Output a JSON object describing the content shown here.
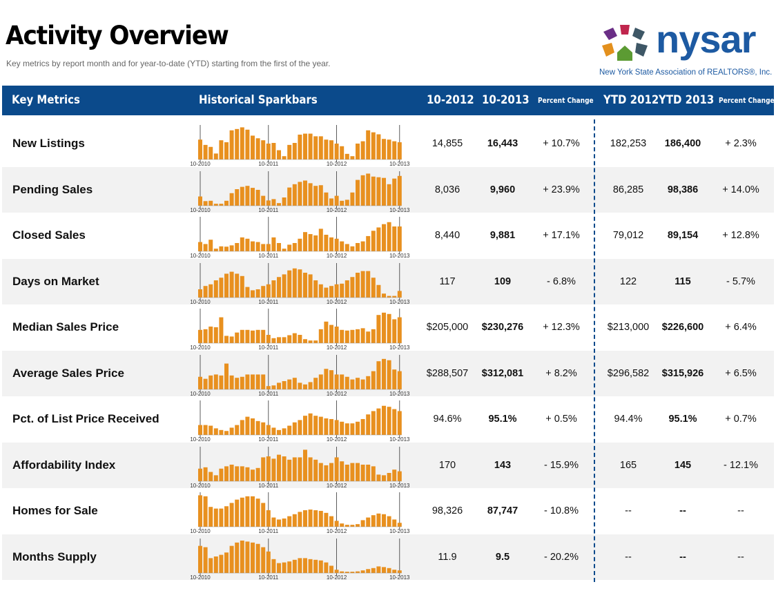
{
  "header": {
    "title": "Activity Overview",
    "subtitle": "Key metrics by report month and for year-to-date (YTD) starting from the first of the year.",
    "logo": {
      "wordmark": "nysar",
      "tagline": "New York State Association of REALTORS®, Inc.",
      "colors": [
        "#6a2e86",
        "#c0264d",
        "#e3901d",
        "#5c9b33",
        "#3e5766"
      ]
    }
  },
  "columns": {
    "metric": "Key Metrics",
    "spark": "Historical Sparkbars",
    "m2012": "10-2012",
    "m2013": "10-2013",
    "pct": "Percent Change",
    "ytd2012": "YTD 2012",
    "ytd2013": "YTD 2013",
    "ytdpct": "Percent Change"
  },
  "spark_axis": [
    "10-2010",
    "10-2011",
    "10-2012",
    "10-2013"
  ],
  "bar_color": "#e8901f",
  "rows": [
    {
      "metric": "New Listings",
      "m2012": "14,855",
      "m2013": "16,443",
      "pct": "+ 10.7%",
      "ytd2012": "182,253",
      "ytd2013": "186,400",
      "ytdpct": "+ 2.3%",
      "bars": [
        0.6,
        0.44,
        0.38,
        0.18,
        0.58,
        0.52,
        0.88,
        0.92,
        0.97,
        0.9,
        0.72,
        0.64,
        0.58,
        0.48,
        0.5,
        0.28,
        0.1,
        0.44,
        0.5,
        0.75,
        0.78,
        0.78,
        0.7,
        0.7,
        0.6,
        0.58,
        0.48,
        0.4,
        0.17,
        0.1,
        0.48,
        0.55,
        0.88,
        0.82,
        0.76,
        0.62,
        0.6,
        0.55,
        0.52
      ]
    },
    {
      "metric": "Pending Sales",
      "m2012": "8,036",
      "m2013": "9,960",
      "pct": "+ 23.9%",
      "ytd2012": "86,285",
      "ytd2013": "98,386",
      "ytdpct": "+ 14.0%",
      "bars": [
        0.28,
        0.14,
        0.15,
        0.06,
        0.06,
        0.15,
        0.38,
        0.5,
        0.57,
        0.6,
        0.54,
        0.48,
        0.3,
        0.16,
        0.2,
        0.08,
        0.25,
        0.55,
        0.65,
        0.72,
        0.76,
        0.68,
        0.6,
        0.62,
        0.4,
        0.22,
        0.3,
        0.15,
        0.18,
        0.4,
        0.78,
        0.92,
        0.97,
        0.88,
        0.86,
        0.84,
        0.65,
        0.82,
        0.9
      ]
    },
    {
      "metric": "Closed Sales",
      "m2012": "8,440",
      "m2013": "9,881",
      "pct": "+ 17.1%",
      "ytd2012": "79,012",
      "ytd2013": "89,154",
      "ytdpct": "+ 12.8%",
      "bars": [
        0.28,
        0.22,
        0.35,
        0.08,
        0.15,
        0.14,
        0.18,
        0.25,
        0.42,
        0.38,
        0.3,
        0.28,
        0.22,
        0.22,
        0.42,
        0.25,
        0.08,
        0.2,
        0.25,
        0.38,
        0.58,
        0.52,
        0.48,
        0.68,
        0.5,
        0.42,
        0.38,
        0.3,
        0.22,
        0.15,
        0.25,
        0.3,
        0.46,
        0.62,
        0.72,
        0.82,
        0.88,
        0.75,
        0.75
      ]
    },
    {
      "metric": "Days on Market",
      "m2012": "117",
      "m2013": "109",
      "pct": "- 6.8%",
      "ytd2012": "122",
      "ytd2013": "115",
      "ytdpct": "- 5.7%",
      "bars": [
        0.25,
        0.35,
        0.4,
        0.52,
        0.6,
        0.72,
        0.78,
        0.72,
        0.65,
        0.32,
        0.22,
        0.25,
        0.35,
        0.4,
        0.52,
        0.62,
        0.7,
        0.82,
        0.88,
        0.85,
        0.75,
        0.7,
        0.52,
        0.4,
        0.3,
        0.35,
        0.4,
        0.42,
        0.52,
        0.62,
        0.75,
        0.8,
        0.8,
        0.6,
        0.38,
        0.12,
        0.05,
        0.05,
        0.2
      ]
    },
    {
      "metric": "Median Sales Price",
      "m2012": "$205,000",
      "m2013": "$230,276",
      "pct": "+ 12.3%",
      "ytd2012": "$213,000",
      "ytd2013": "$226,600",
      "ytdpct": "+ 6.4%",
      "bars": [
        0.4,
        0.42,
        0.5,
        0.48,
        0.78,
        0.22,
        0.2,
        0.32,
        0.4,
        0.4,
        0.38,
        0.4,
        0.4,
        0.25,
        0.15,
        0.18,
        0.18,
        0.24,
        0.3,
        0.25,
        0.12,
        0.08,
        0.08,
        0.42,
        0.65,
        0.55,
        0.5,
        0.4,
        0.38,
        0.4,
        0.42,
        0.45,
        0.35,
        0.42,
        0.85,
        0.92,
        0.88,
        0.72,
        0.78
      ]
    },
    {
      "metric": "Average Sales Price",
      "m2012": "$288,507",
      "m2013": "$312,081",
      "pct": "+ 8.2%",
      "ytd2012": "$296,582",
      "ytd2013": "$315,926",
      "ytdpct": "+ 6.5%",
      "bars": [
        0.38,
        0.32,
        0.42,
        0.45,
        0.42,
        0.78,
        0.42,
        0.35,
        0.38,
        0.45,
        0.45,
        0.45,
        0.45,
        0.1,
        0.12,
        0.2,
        0.25,
        0.3,
        0.35,
        0.2,
        0.15,
        0.22,
        0.35,
        0.45,
        0.62,
        0.58,
        0.45,
        0.45,
        0.38,
        0.3,
        0.35,
        0.3,
        0.4,
        0.55,
        0.85,
        0.92,
        0.88,
        0.6,
        0.55
      ]
    },
    {
      "metric": "Pct. of List Price Received",
      "m2012": "94.6%",
      "m2013": "95.1%",
      "pct": "+ 0.5%",
      "ytd2012": "94.4%",
      "ytd2013": "95.1%",
      "ytdpct": "+ 0.7%",
      "bars": [
        0.3,
        0.3,
        0.28,
        0.2,
        0.15,
        0.12,
        0.22,
        0.3,
        0.45,
        0.55,
        0.5,
        0.42,
        0.38,
        0.3,
        0.22,
        0.15,
        0.2,
        0.28,
        0.38,
        0.45,
        0.58,
        0.65,
        0.58,
        0.55,
        0.5,
        0.48,
        0.45,
        0.4,
        0.35,
        0.35,
        0.4,
        0.48,
        0.62,
        0.72,
        0.8,
        0.88,
        0.85,
        0.78,
        0.72
      ]
    },
    {
      "metric": "Affordability Index",
      "m2012": "170",
      "m2013": "143",
      "pct": "- 15.9%",
      "ytd2012": "165",
      "ytd2013": "145",
      "ytdpct": "- 12.1%",
      "bars": [
        0.38,
        0.42,
        0.28,
        0.18,
        0.38,
        0.45,
        0.5,
        0.45,
        0.45,
        0.42,
        0.35,
        0.4,
        0.72,
        0.75,
        0.68,
        0.8,
        0.75,
        0.65,
        0.72,
        0.72,
        0.95,
        0.72,
        0.65,
        0.55,
        0.48,
        0.55,
        0.72,
        0.6,
        0.5,
        0.55,
        0.55,
        0.5,
        0.5,
        0.45,
        0.2,
        0.18,
        0.25,
        0.35,
        0.3
      ]
    },
    {
      "metric": "Homes for Sale",
      "m2012": "98,326",
      "m2013": "87,747",
      "pct": "- 10.8%",
      "ytd2012": "--",
      "ytd2013": "--",
      "ytdpct": "--",
      "bars": [
        0.95,
        0.92,
        0.6,
        0.55,
        0.55,
        0.62,
        0.72,
        0.82,
        0.88,
        0.92,
        0.92,
        0.85,
        0.72,
        0.5,
        0.28,
        0.22,
        0.25,
        0.32,
        0.38,
        0.45,
        0.5,
        0.52,
        0.5,
        0.48,
        0.42,
        0.32,
        0.18,
        0.1,
        0.06,
        0.06,
        0.08,
        0.2,
        0.28,
        0.35,
        0.4,
        0.38,
        0.32,
        0.22,
        0.12
      ]
    },
    {
      "metric": "Months Supply",
      "m2012": "11.9",
      "m2013": "9.5",
      "pct": "- 20.2%",
      "ytd2012": "--",
      "ytd2013": "--",
      "ytdpct": "--",
      "bars": [
        0.82,
        0.78,
        0.45,
        0.5,
        0.55,
        0.62,
        0.82,
        0.92,
        0.98,
        0.95,
        0.92,
        0.88,
        0.78,
        0.65,
        0.42,
        0.3,
        0.32,
        0.35,
        0.4,
        0.45,
        0.45,
        0.42,
        0.4,
        0.38,
        0.32,
        0.22,
        0.1,
        0.05,
        0.04,
        0.04,
        0.05,
        0.08,
        0.12,
        0.15,
        0.2,
        0.18,
        0.15,
        0.1,
        0.08
      ]
    }
  ]
}
